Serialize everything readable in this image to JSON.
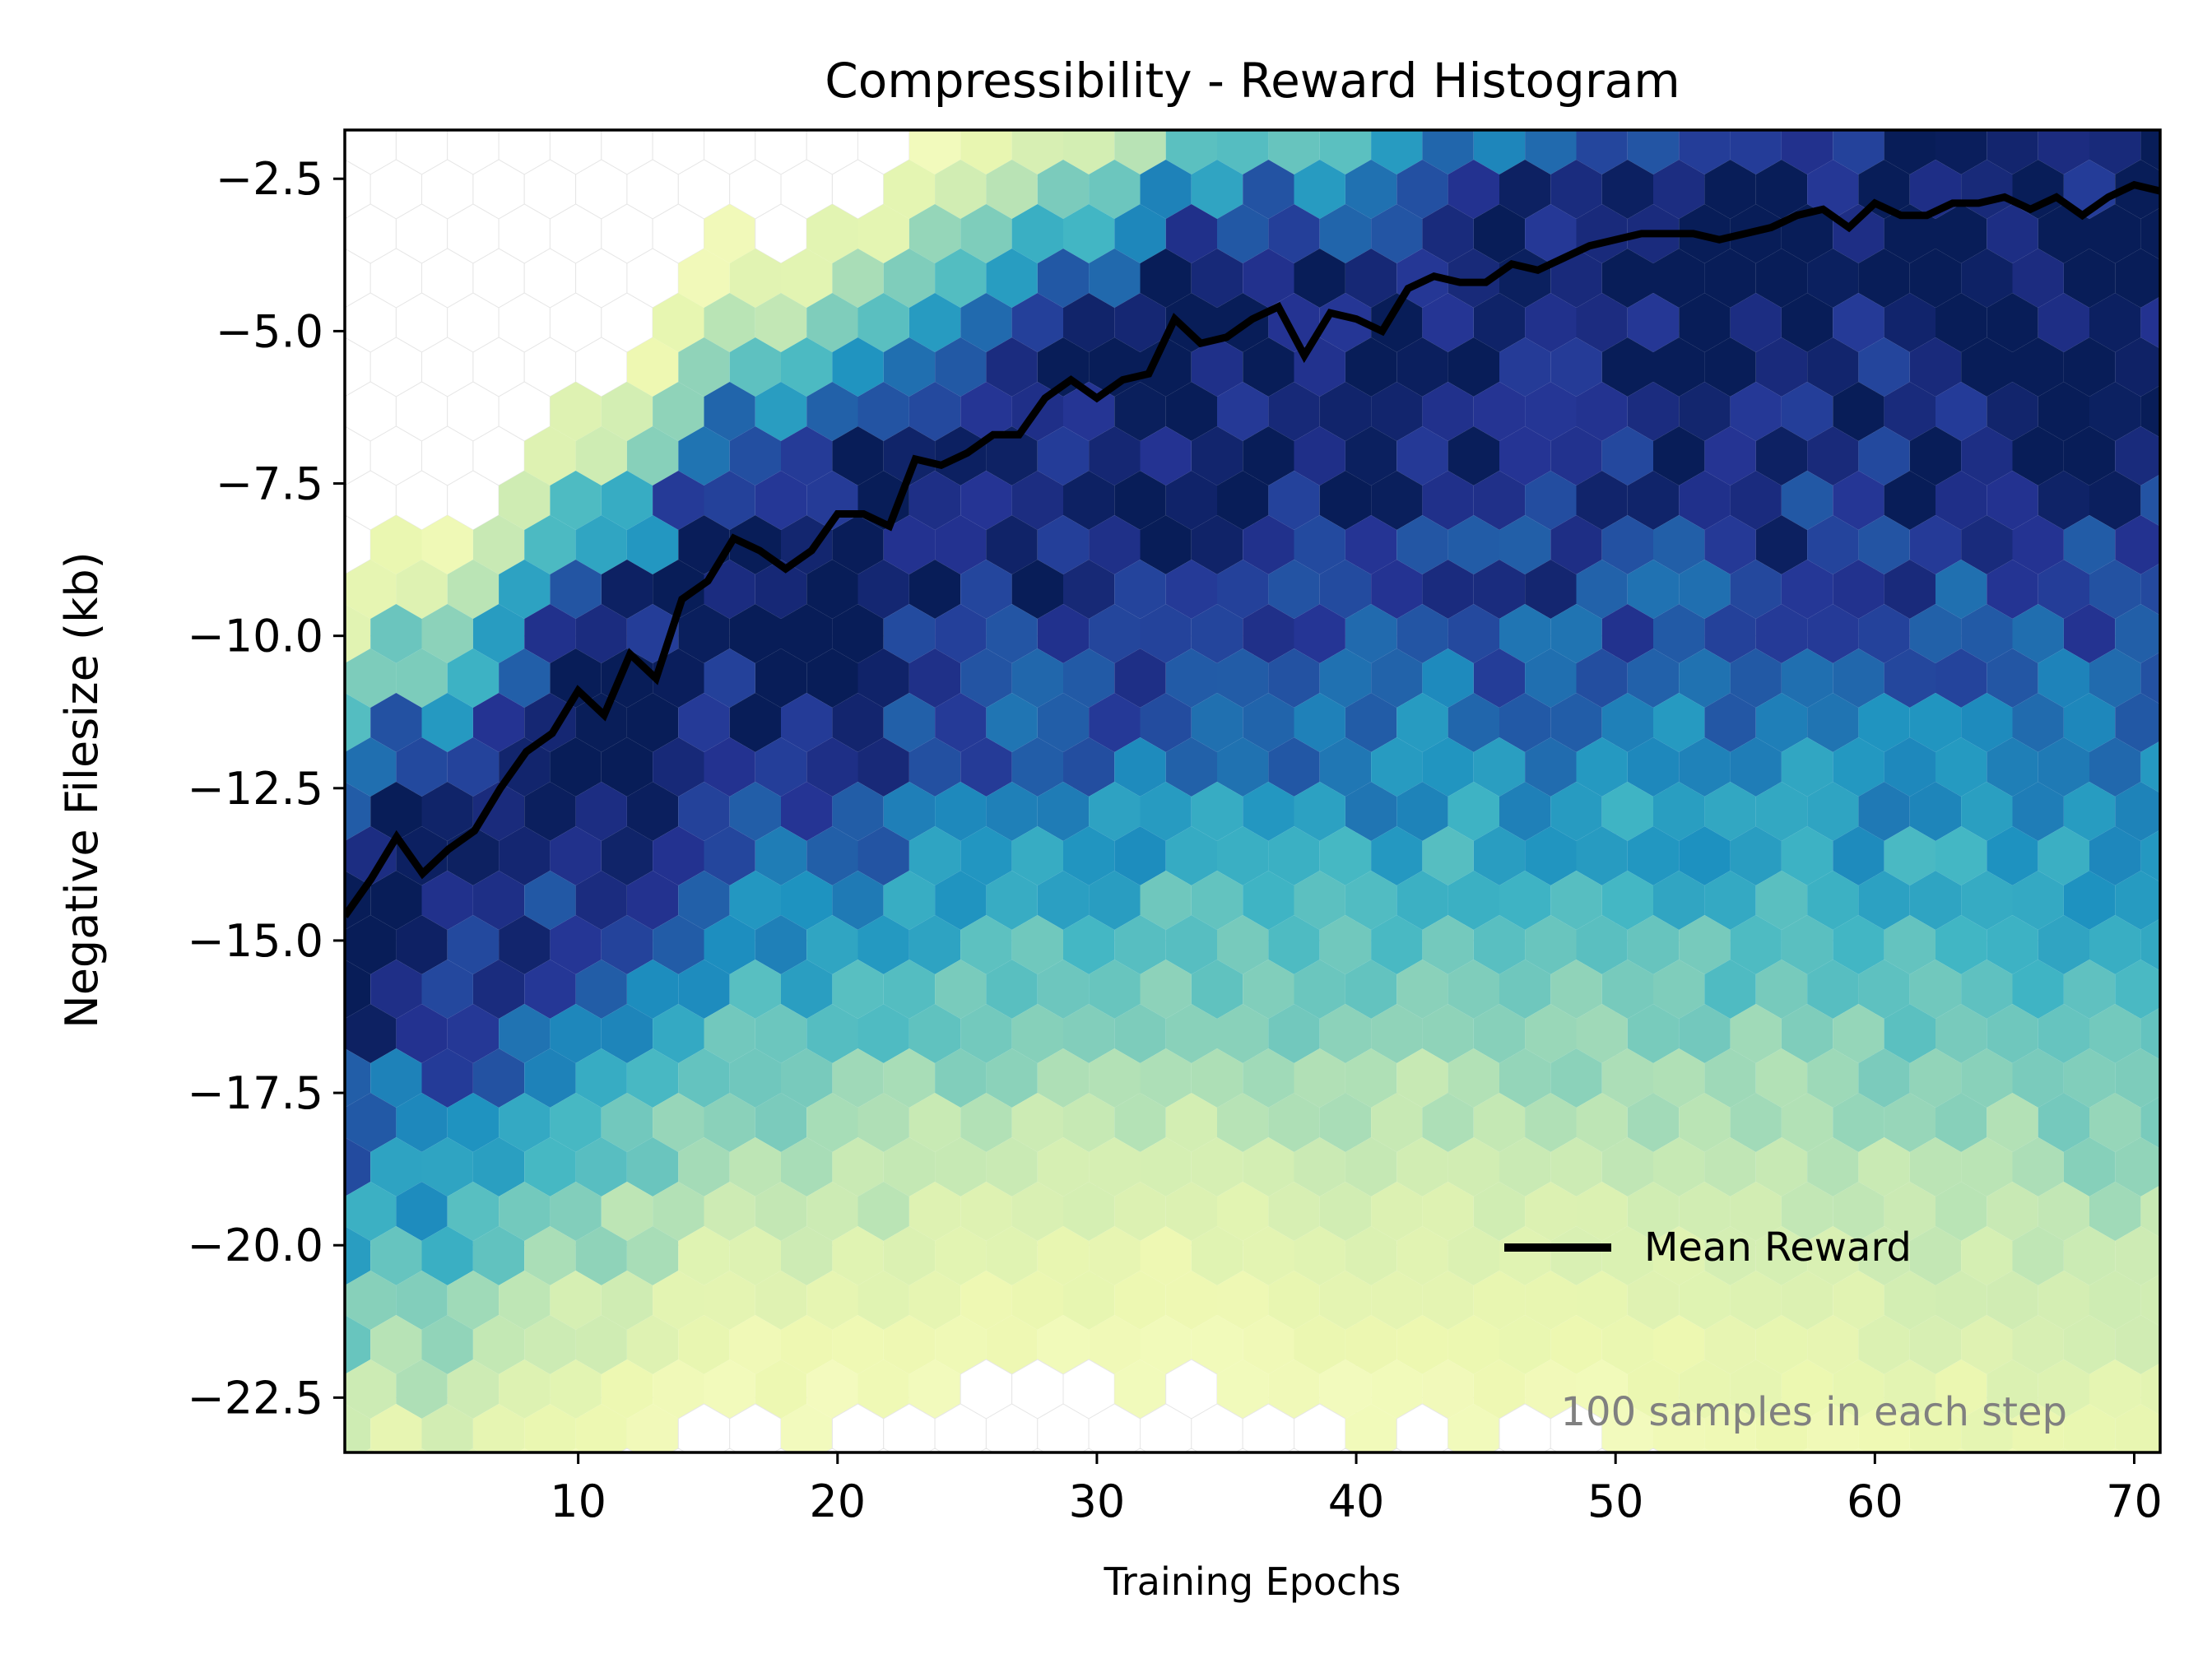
{
  "chart_data": {
    "type": "hexbin",
    "title": "Compressibility - Reward Histogram",
    "xlabel": "Training Epochs",
    "ylabel": "Negative Filesize (kb)",
    "xlim": [
      1,
      71
    ],
    "ylim": [
      -23.4,
      -1.7
    ],
    "x_ticks": [
      10,
      20,
      30,
      40,
      50,
      60,
      70
    ],
    "x_tick_labels": [
      "10",
      "20",
      "30",
      "40",
      "50",
      "60",
      "70"
    ],
    "y_ticks": [
      -2.5,
      -5.0,
      -7.5,
      -10.0,
      -12.5,
      -15.0,
      -17.5,
      -20.0,
      -22.5
    ],
    "y_tick_labels": [
      "−2.5",
      "−5.0",
      "−7.5",
      "−10.0",
      "−12.5",
      "−15.0",
      "−17.5",
      "−20.0",
      "−22.5"
    ],
    "grid": true,
    "colormap": "YlGnBu",
    "legend": {
      "label": "Mean Reward",
      "position": "lower-right"
    },
    "annotation": "100 samples in each step",
    "series": [
      {
        "name": "Mean Reward",
        "x": [
          1,
          2,
          3,
          4,
          5,
          6,
          7,
          8,
          9,
          10,
          11,
          12,
          13,
          14,
          15,
          16,
          17,
          18,
          19,
          20,
          21,
          22,
          23,
          24,
          25,
          26,
          27,
          28,
          29,
          30,
          31,
          32,
          33,
          34,
          35,
          36,
          37,
          38,
          39,
          40,
          41,
          42,
          43,
          44,
          45,
          46,
          47,
          48,
          49,
          50,
          51,
          52,
          53,
          54,
          55,
          56,
          57,
          58,
          59,
          60,
          61,
          62,
          63,
          64,
          65,
          66,
          67,
          68,
          69,
          70,
          71
        ],
        "values": [
          -14.6,
          -14.0,
          -13.3,
          -13.9,
          -13.5,
          -13.2,
          -12.5,
          -11.9,
          -11.6,
          -10.9,
          -11.3,
          -10.3,
          -10.7,
          -9.4,
          -9.1,
          -8.4,
          -8.6,
          -8.9,
          -8.6,
          -8.0,
          -8.0,
          -8.2,
          -7.1,
          -7.2,
          -7.0,
          -6.7,
          -6.7,
          -6.1,
          -5.8,
          -6.1,
          -5.8,
          -5.7,
          -4.8,
          -5.2,
          -5.1,
          -4.8,
          -4.6,
          -5.4,
          -4.7,
          -4.8,
          -5.0,
          -4.3,
          -4.1,
          -4.2,
          -4.2,
          -3.9,
          -4.0,
          -3.8,
          -3.6,
          -3.5,
          -3.4,
          -3.4,
          -3.4,
          -3.5,
          -3.4,
          -3.3,
          -3.1,
          -3.0,
          -3.3,
          -2.9,
          -3.1,
          -3.1,
          -2.9,
          -2.9,
          -2.8,
          -3.0,
          -2.8,
          -3.1,
          -2.8,
          -2.6,
          -2.7
        ]
      }
    ],
    "density_model": "band of sample density centered on the mean reward, densest near the mean and thinning toward lower filesize values"
  }
}
